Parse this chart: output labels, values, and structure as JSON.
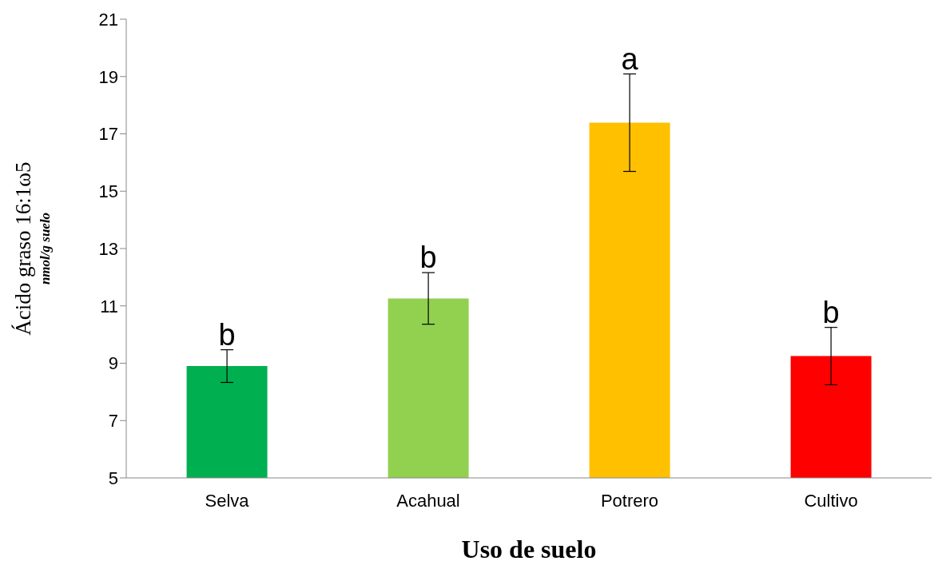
{
  "chart_data": {
    "type": "bar",
    "xlabel": "Uso de suelo",
    "ylabel": "Ácido graso 16:1ω5\nnmol/g suelo",
    "categories": [
      "Selva",
      "Acahual",
      "Potrero",
      "Cultivo"
    ],
    "values": [
      8.9,
      11.26,
      17.39,
      9.25
    ],
    "colors": [
      "#00b050",
      "#92d050",
      "#ffc000",
      "#ff0000"
    ],
    "errors": [
      0.57,
      0.9,
      1.7,
      1.0
    ],
    "ylim": [
      5,
      21
    ],
    "yticks": [
      5,
      7,
      9,
      11,
      13,
      15,
      17,
      19,
      21
    ],
    "grid": false,
    "legend": false,
    "annotations": [
      {
        "text": "b",
        "x": "Selva",
        "y": 9.47
      },
      {
        "text": "b",
        "x": "Acahual",
        "y": 12.16
      },
      {
        "text": "a",
        "x": "Potrero",
        "y": 19.09
      },
      {
        "text": "b",
        "x": "Cultivo",
        "y": 10.25
      }
    ]
  }
}
